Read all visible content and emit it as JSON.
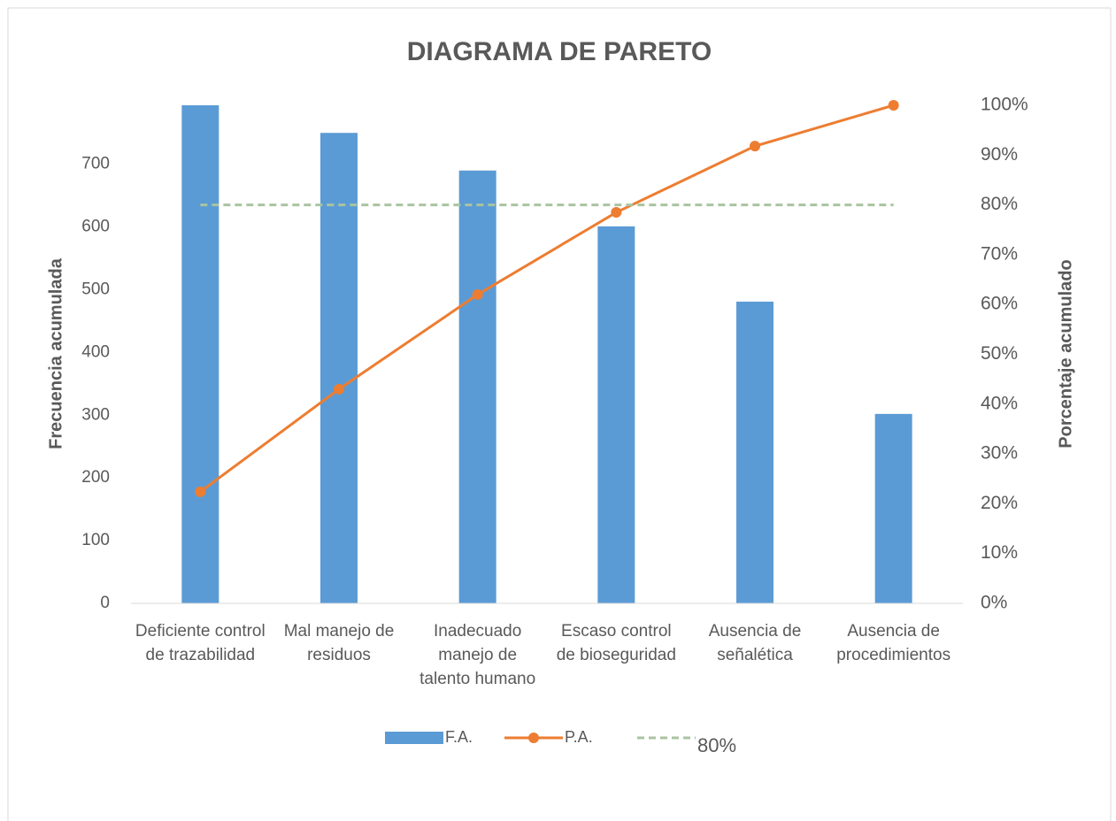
{
  "chart_data": {
    "type": "bar",
    "title": "DIAGRAMA DE PARETO",
    "y_label": "Frecuencia acumulada",
    "y2_label": "Porcentaje  acumulado",
    "categories": [
      "Deficiente control de trazabilidad",
      "Mal manejo de residuos",
      "Inadecuado manejo de talento humano",
      "Escaso control de bioseguridad",
      "Ausencia de señalética",
      "Ausencia de procedimientos"
    ],
    "series": [
      {
        "name": "F.A.",
        "type": "bar",
        "color": "#5b9bd5",
        "values": [
          794,
          750,
          690,
          601,
          481,
          302
        ]
      },
      {
        "name": "P.A.",
        "type": "line",
        "color": "#ed7d31",
        "axis": "y2",
        "values": [
          22.4,
          43,
          62,
          78.5,
          91.8,
          100
        ]
      },
      {
        "name": "80%",
        "type": "dashed",
        "color": "#a9c4a0",
        "axis": "y2",
        "values": [
          80,
          80,
          80,
          80,
          80,
          80
        ]
      }
    ],
    "ylim": [
      0,
      794
    ],
    "yticks": [
      0,
      100,
      200,
      300,
      400,
      500,
      600,
      700
    ],
    "y2lim": [
      0,
      100
    ],
    "y2ticks": [
      {
        "value": 0,
        "label": "0%"
      },
      {
        "value": 10,
        "label": "10%"
      },
      {
        "value": 20,
        "label": "20%"
      },
      {
        "value": 30,
        "label": "30%"
      },
      {
        "value": 40,
        "label": "40%"
      },
      {
        "value": 50,
        "label": "50%"
      },
      {
        "value": 60,
        "label": "60%"
      },
      {
        "value": 70,
        "label": "70%"
      },
      {
        "value": 80,
        "label": "80%"
      },
      {
        "value": 90,
        "label": "90%"
      },
      {
        "value": 100,
        "label": "100%"
      }
    ]
  }
}
